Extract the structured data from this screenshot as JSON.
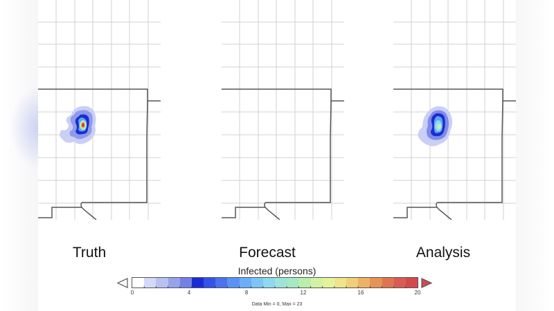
{
  "panels": [
    {
      "id": "truth",
      "label": "Truth",
      "has_plume": true,
      "peak_value_approx": 20
    },
    {
      "id": "forecast",
      "label": "Forecast",
      "has_plume": false
    },
    {
      "id": "analysis",
      "label": "Analysis",
      "has_plume": true,
      "peak_value_approx": 13
    }
  ],
  "colorbar": {
    "title": "Infected (persons)",
    "min": 0,
    "max": 20,
    "tick_labels": [
      "0",
      "4",
      "8",
      "12",
      "16",
      "20"
    ],
    "note": "Data Min = 0, Max = 23",
    "under_arrow": "open-triangle-left",
    "over_arrow": "filled-triangle-right",
    "colors": [
      "#ffffff",
      "#d3d9f6",
      "#b8c1f2",
      "#97a2ec",
      "#7380e4",
      "#1b2bd6",
      "#3353e6",
      "#4a72ee",
      "#5a92f4",
      "#6aaef6",
      "#7fc4f6",
      "#8fd8ee",
      "#9de4dc",
      "#a6e8c2",
      "#b9eeab",
      "#d2f2a2",
      "#e6f29a",
      "#eee48c",
      "#f0cf78",
      "#eeb264",
      "#e79256",
      "#df7450",
      "#d95c52",
      "#d24a4e"
    ],
    "over_color": "#d24a4e"
  },
  "chart_data": {
    "type": "heatmap",
    "title": "Infected (persons)",
    "subplots": [
      "Truth",
      "Forecast",
      "Analysis"
    ],
    "colorbar_range": [
      0,
      20
    ],
    "colorbar_ticks": [
      0,
      4,
      8,
      12,
      16,
      20
    ],
    "data_min": 0,
    "data_max": 23,
    "description": {
      "Truth": "compact plume with peak near 18-23 (red core) surrounded by blue/cyan contours",
      "Forecast": "no infected persons (all zero)",
      "Analysis": "plume at same location, peak approx 12-13 (light green/cyan core), blue contours"
    },
    "grid": true,
    "xlabel": "",
    "ylabel": ""
  }
}
